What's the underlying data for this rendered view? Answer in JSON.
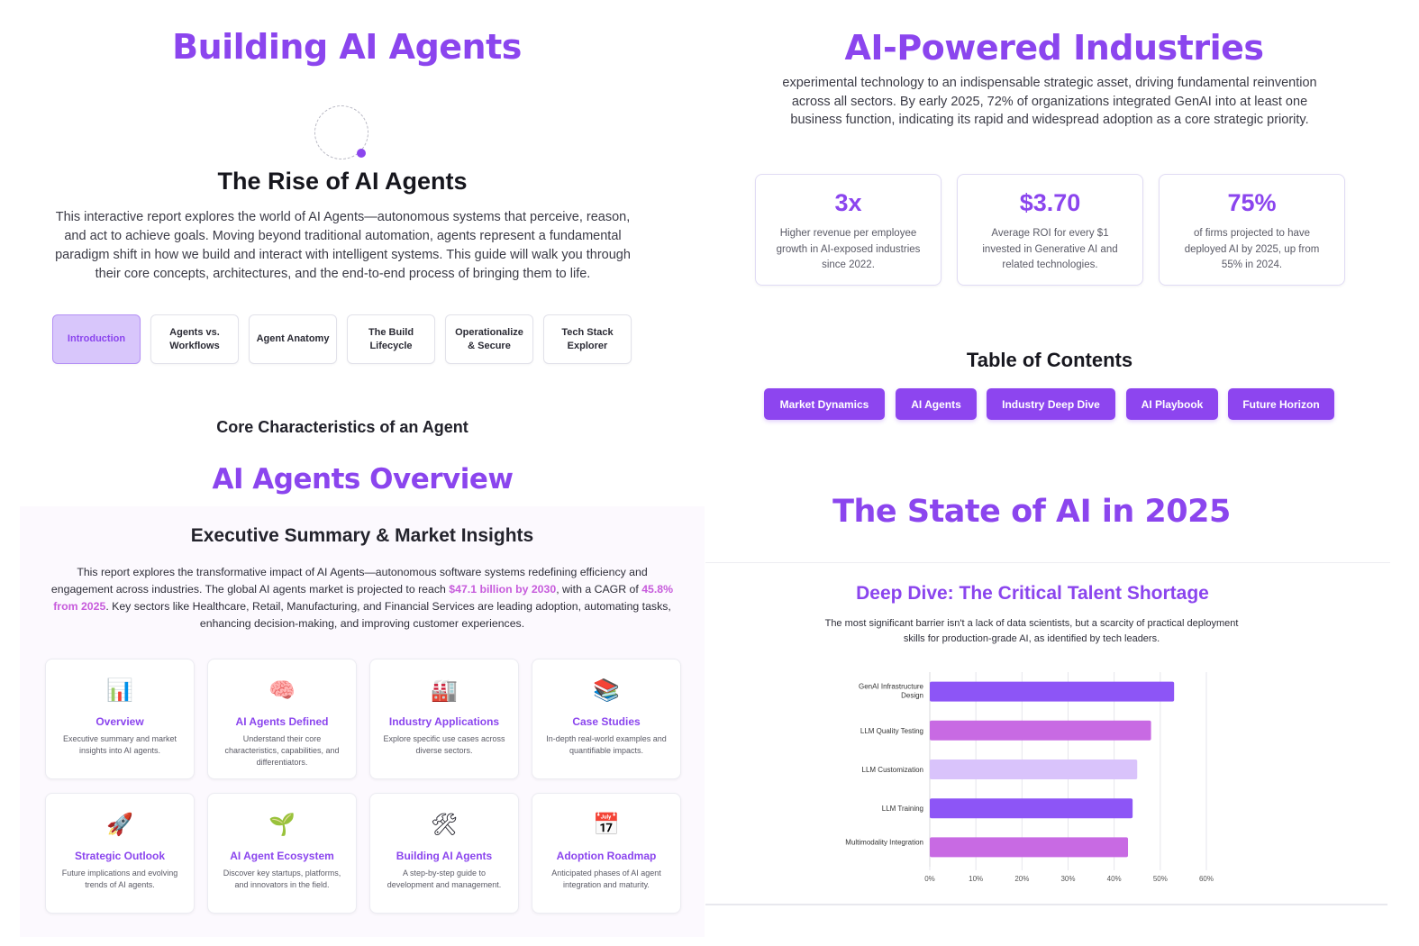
{
  "panel1": {
    "title": "Building AI Agents",
    "heading": "The Rise of AI Agents",
    "intro": "This interactive report explores the world of AI Agents—autonomous systems that perceive, reason, and act to achieve goals. Moving beyond traditional automation, agents represent a fundamental paradigm shift in how we build and interact with intelligent systems. This guide will walk you through their core concepts, architectures, and the end-to-end process of bringing them to life.",
    "tabs": [
      {
        "label": "Introduction"
      },
      {
        "label": "Agents vs. Workflows"
      },
      {
        "label": "Agent Anatomy"
      },
      {
        "label": "The Build Lifecycle"
      },
      {
        "label": "Operationalize & Secure"
      },
      {
        "label": "Tech Stack Explorer"
      }
    ],
    "core_heading": "Core Characteristics of an Agent",
    "accent": "#8b45ee"
  },
  "panel2": {
    "title": "AI-Powered Industries",
    "paragraph": "experimental technology to an indispensable strategic asset, driving fundamental reinvention across all sectors. By early 2025, 72% of organizations integrated GenAI into at least one business function, indicating its rapid and widespread adoption as a core strategic priority.",
    "stats": [
      {
        "value": "3x",
        "desc": "Higher revenue per employee growth in AI-exposed industries since 2022."
      },
      {
        "value": "$3.70",
        "desc": "Average ROI for every $1 invested in Generative AI and related technologies."
      },
      {
        "value": "75%",
        "desc": "of firms projected to have deployed AI by 2025, up from 55% in 2024."
      }
    ],
    "toc_heading": "Table of Contents",
    "toc": [
      "Market Dynamics",
      "AI Agents",
      "Industry Deep Dive",
      "AI Playbook",
      "Future Horizon"
    ]
  },
  "panel3": {
    "title": "AI Agents Overview",
    "heading": "Executive Summary & Market Insights",
    "summary_a": "This report explores the transformative impact of AI Agents—autonomous software systems redefining efficiency and engagement across industries. The global AI agents market is projected to reach ",
    "summary_hl1": "$47.1 billion by 2030",
    "summary_b": ", with a CAGR of ",
    "summary_hl2": "45.8% from 2025",
    "summary_c": ". Key sectors like Healthcare, Retail, Manufacturing, and Financial Services are leading adoption, automating tasks, enhancing decision-making, and improving customer experiences.",
    "cards": [
      {
        "icon": "📊",
        "icon_name": "bar-chart-icon",
        "title": "Overview",
        "desc": "Executive summary and market insights into AI agents."
      },
      {
        "icon": "🧠",
        "icon_name": "brain-icon",
        "title": "AI Agents Defined",
        "desc": "Understand their core characteristics, capabilities, and differentiators."
      },
      {
        "icon": "🏭",
        "icon_name": "factory-icon",
        "title": "Industry Applications",
        "desc": "Explore specific use cases across diverse sectors."
      },
      {
        "icon": "📚",
        "icon_name": "books-icon",
        "title": "Case Studies",
        "desc": "In-depth real-world examples and quantifiable impacts."
      },
      {
        "icon": "🚀",
        "icon_name": "rocket-icon",
        "title": "Strategic Outlook",
        "desc": "Future implications and evolving trends of AI agents."
      },
      {
        "icon": "🌱",
        "icon_name": "seedling-icon",
        "title": "AI Agent Ecosystem",
        "desc": "Discover key startups, platforms, and innovators in the field."
      },
      {
        "icon": "🛠",
        "icon_name": "tools-icon",
        "title": "Building AI Agents",
        "desc": "A step-by-step guide to development and management."
      },
      {
        "icon": "📅",
        "icon_name": "calendar-icon",
        "title": "Adoption Roadmap",
        "desc": "Anticipated phases of AI agent integration and maturity."
      }
    ]
  },
  "panel4": {
    "title": "The State of AI in 2025",
    "heading": "Deep Dive: The Critical Talent Shortage",
    "subtitle": "The most significant barrier isn't a lack of data scientists, but a scarcity of practical deployment skills for production-grade AI, as identified by tech leaders."
  },
  "chart_data": {
    "type": "bar",
    "orientation": "horizontal",
    "categories": [
      "GenAI Infrastructure Design",
      "LLM Quality Testing",
      "LLM Customization",
      "LLM Training",
      "Multimodality Integration"
    ],
    "values": [
      53,
      48,
      45,
      44,
      43
    ],
    "colors": [
      "#8d55f6",
      "#c86ae3",
      "#d9c3fb",
      "#8d55f6",
      "#c86ae3"
    ],
    "xlim": [
      0,
      60
    ],
    "xticks": [
      "0%",
      "10%",
      "20%",
      "30%",
      "40%",
      "50%",
      "60%"
    ],
    "grid": true,
    "title": "",
    "xlabel": "",
    "ylabel": ""
  }
}
